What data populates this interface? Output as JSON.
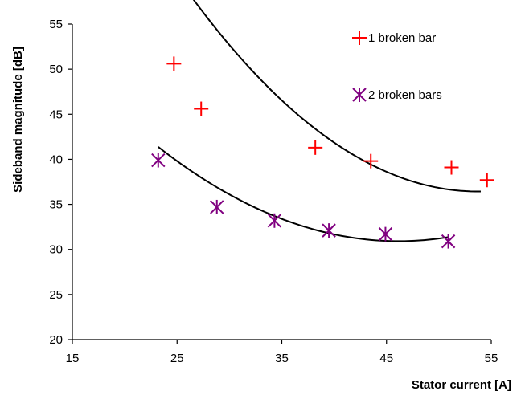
{
  "chart_data": {
    "type": "scatter",
    "title": "",
    "xlabel": "Stator current [A]",
    "ylabel": "Sideband magnitude [dB]",
    "xlim": [
      15,
      55
    ],
    "ylim": [
      20,
      55
    ],
    "xticks": [
      "15",
      "25",
      "35",
      "45",
      "55"
    ],
    "yticks": [
      "20",
      "25",
      "30",
      "35",
      "40",
      "45",
      "50",
      "55"
    ],
    "grid": false,
    "legend_position": "top-right",
    "series": [
      {
        "name": "1 broken bar",
        "marker": "plus",
        "color": "#ff0000",
        "x": [
          24.7,
          27.3,
          38.2,
          43.5,
          51.2,
          54.6
        ],
        "y": [
          50.6,
          45.6,
          41.3,
          39.8,
          39.1,
          37.7
        ],
        "trend_x": [
          24.7,
          54.0
        ],
        "trend_coeffs": [
          119.876,
          -3.1086,
          0.028952
        ]
      },
      {
        "name": "2 broken bars",
        "marker": "star",
        "color": "#800080",
        "x": [
          23.2,
          28.8,
          34.3,
          39.5,
          44.9,
          50.9
        ],
        "y": [
          39.9,
          34.7,
          33.2,
          32.1,
          31.7,
          30.9
        ],
        "trend_x": [
          23.2,
          50.9
        ],
        "trend_coeffs": [
          73.1856,
          -1.83124,
          0.019835
        ]
      }
    ]
  }
}
